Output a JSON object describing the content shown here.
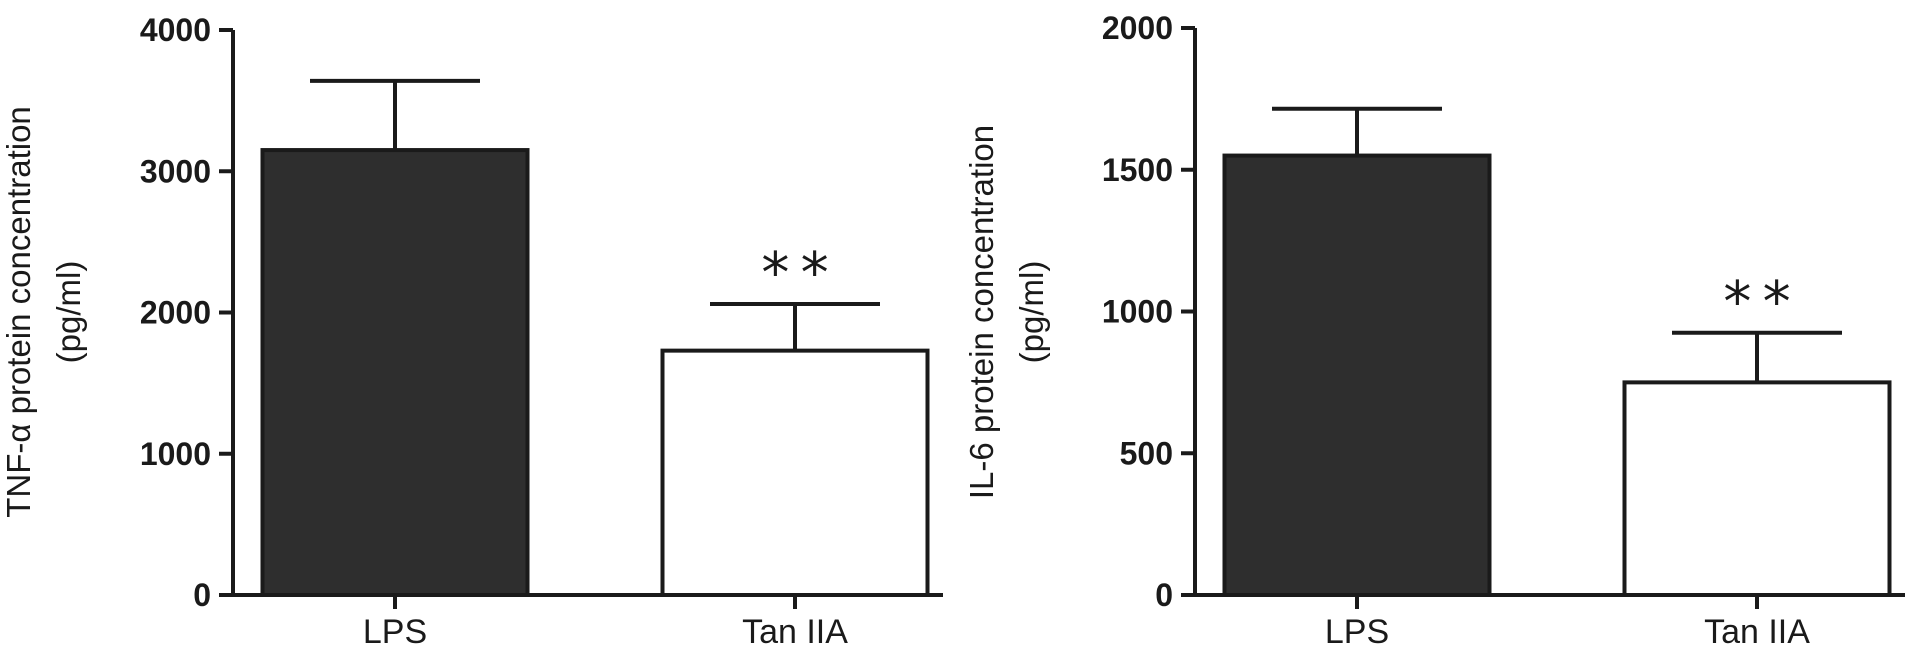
{
  "chart_data": [
    {
      "type": "bar",
      "categories": [
        "LPS",
        "Tan IIA"
      ],
      "values": [
        3150,
        1730
      ],
      "errors": [
        490,
        330
      ],
      "bar_colors": [
        "#2e2e2e",
        "#ffffff"
      ],
      "annotations": [
        "",
        "**"
      ],
      "ylabel": [
        "TNF-α protein concentration",
        "(pg/ml)"
      ],
      "ylim": [
        0,
        4000
      ],
      "yticks": [
        "0",
        "1000",
        "2000",
        "3000",
        "4000"
      ],
      "ytick_values": [
        0,
        1000,
        2000,
        3000,
        4000
      ],
      "grid": false
    },
    {
      "type": "bar",
      "categories": [
        "LPS",
        "Tan IIA"
      ],
      "values": [
        1550,
        750
      ],
      "errors": [
        165,
        175
      ],
      "bar_colors": [
        "#2e2e2e",
        "#ffffff"
      ],
      "annotations": [
        "",
        "**"
      ],
      "ylabel": [
        "IL-6 protein concentration",
        "(pg/ml)"
      ],
      "ylim": [
        0,
        2000
      ],
      "yticks": [
        "0",
        "500",
        "1000",
        "1500",
        "2000"
      ],
      "ytick_values": [
        0,
        500,
        1000,
        1500,
        2000
      ],
      "grid": false
    }
  ]
}
